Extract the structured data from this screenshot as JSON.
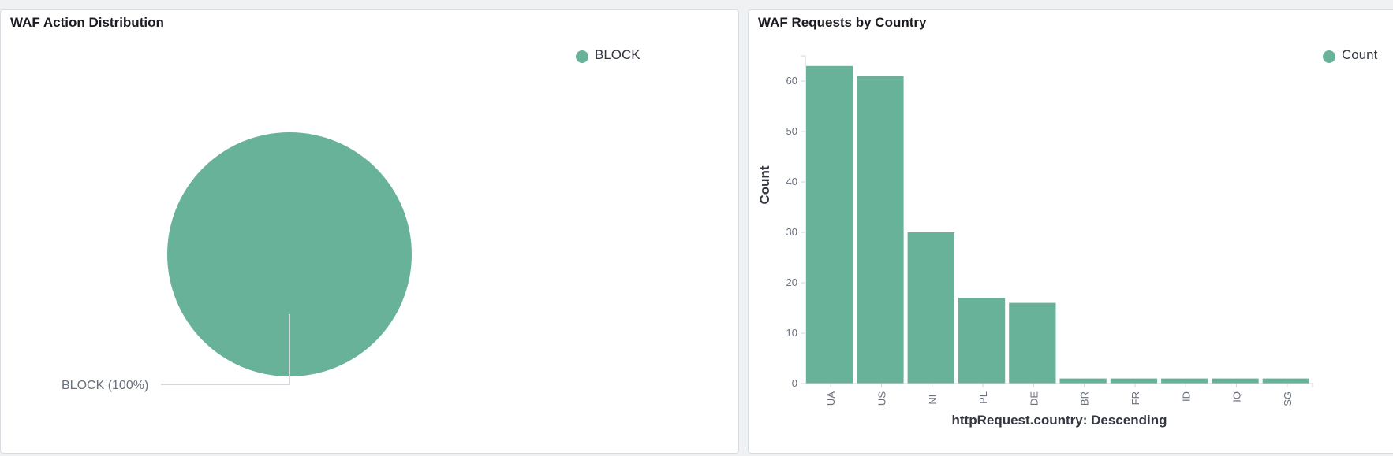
{
  "colors": {
    "series": "#69b29a",
    "leader": "#d3d6db",
    "axis": "#d3d6db",
    "text": "#69707d",
    "title": "#343741"
  },
  "panels": [
    {
      "title": "WAF Action Distribution"
    },
    {
      "title": "WAF Requests by Country"
    }
  ],
  "chart_data": [
    {
      "type": "pie",
      "title": "WAF Action Distribution",
      "slices": [
        {
          "label": "BLOCK",
          "value": 100
        }
      ],
      "slice_label": "BLOCK (100%)",
      "legend": {
        "entries": [
          "BLOCK"
        ],
        "placement": "top-right"
      }
    },
    {
      "type": "bar",
      "title": "WAF Requests by Country",
      "categories": [
        "UA",
        "US",
        "NL",
        "PL",
        "DE",
        "BR",
        "FR",
        "ID",
        "IQ",
        "SG"
      ],
      "values": [
        63,
        61,
        30,
        17,
        16,
        1,
        1,
        1,
        1,
        1
      ],
      "xlabel": "httpRequest.country: Descending",
      "ylabel": "Count",
      "ylim": [
        0,
        65
      ],
      "yticks": [
        0,
        10,
        20,
        30,
        40,
        50,
        60
      ],
      "grid": false,
      "legend": {
        "entries": [
          "Count"
        ],
        "placement": "top-right"
      }
    }
  ]
}
